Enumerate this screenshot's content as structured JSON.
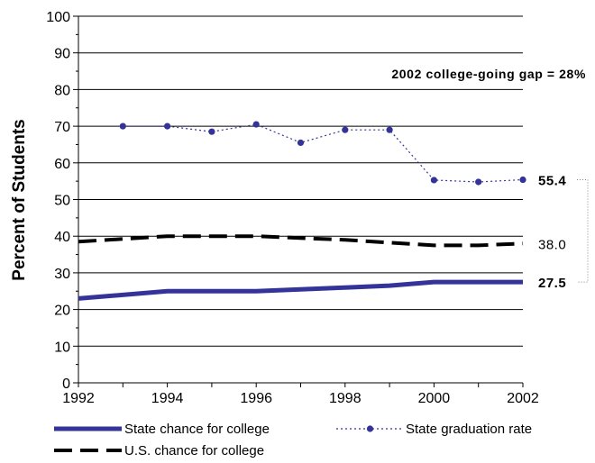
{
  "chart_data": {
    "type": "line",
    "ylabel": "Percent of Students",
    "xlim": [
      1992,
      2002
    ],
    "ylim": [
      0,
      100
    ],
    "x_ticks": [
      "1992",
      "1994",
      "1996",
      "1998",
      "2000",
      "2002"
    ],
    "y_ticks": [
      "0",
      "10",
      "20",
      "30",
      "40",
      "50",
      "60",
      "70",
      "80",
      "90",
      "100"
    ],
    "grid": "horizontal",
    "legend_position": "bottom",
    "series": [
      {
        "name": "State chance for college",
        "style": "solid-thick",
        "color": "#333399",
        "x": [
          1992,
          1994,
          1996,
          1998,
          1999,
          2000,
          2001,
          2002
        ],
        "y": [
          23.0,
          25.0,
          25.0,
          26.0,
          26.5,
          27.5,
          27.5,
          27.5
        ],
        "end_label": "27.5"
      },
      {
        "name": "State graduation rate",
        "style": "dotted-markers",
        "color": "#333399",
        "x": [
          1993,
          1994,
          1995,
          1996,
          1997,
          1998,
          1999,
          2000,
          2001,
          2002
        ],
        "y": [
          70.0,
          70.0,
          68.5,
          70.5,
          65.5,
          69.0,
          69.0,
          55.3,
          54.8,
          55.4
        ],
        "end_label": "55.4"
      },
      {
        "name": "U.S. chance for college",
        "style": "dashed-thick",
        "color": "#000000",
        "x": [
          1992,
          1994,
          1996,
          1998,
          2000,
          2001,
          2002
        ],
        "y": [
          38.5,
          40.0,
          40.0,
          39.0,
          37.5,
          37.5,
          38.0
        ],
        "end_label": "38.0"
      }
    ],
    "annotations": [
      {
        "text": "2002 college-going gap = 28%",
        "from": 55.4,
        "to": 27.5
      }
    ]
  }
}
